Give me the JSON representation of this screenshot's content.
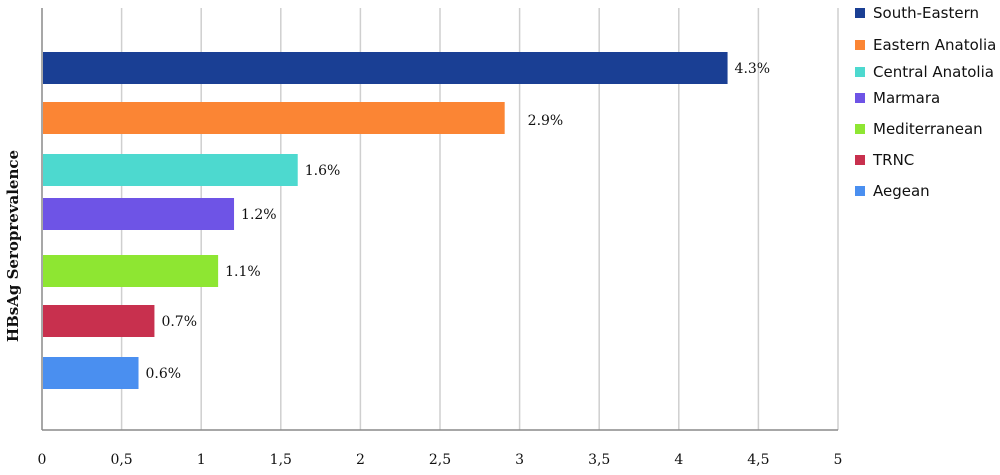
{
  "chart_data": {
    "type": "bar",
    "orientation": "horizontal",
    "title": "",
    "xlabel": "",
    "ylabel": "HBsAg Seroprevalence",
    "xlim": [
      0,
      5
    ],
    "x_ticks": [
      0,
      0.5,
      1,
      1.5,
      2,
      2.5,
      3,
      3.5,
      4,
      4.5,
      5
    ],
    "x_tick_labels": [
      "0",
      "0,5",
      "1",
      "1,5",
      "2",
      "2,5",
      "3",
      "3,5",
      "4",
      "4,5",
      "5"
    ],
    "grid": "vertical",
    "legend_position": "right",
    "series": [
      {
        "name": "South-Eastern",
        "value": 4.3,
        "label": "4.3%",
        "color": "#1a3f94"
      },
      {
        "name": "Eastern Anatolia",
        "value": 2.9,
        "label": "2.9%",
        "color": "#fb8534"
      },
      {
        "name": "Central Anatolia",
        "value": 1.6,
        "label": "1.6%",
        "color": "#4dd9cf"
      },
      {
        "name": "Marmara",
        "value": 1.2,
        "label": "1.2%",
        "color": "#6e54e6"
      },
      {
        "name": "Mediterranean",
        "value": 1.1,
        "label": "1.1%",
        "color": "#8ee632"
      },
      {
        "name": "TRNC",
        "value": 0.7,
        "label": "0.7%",
        "color": "#c8304e"
      },
      {
        "name": "Aegean",
        "value": 0.6,
        "label": "0.6%",
        "color": "#4a8ff0"
      }
    ]
  }
}
